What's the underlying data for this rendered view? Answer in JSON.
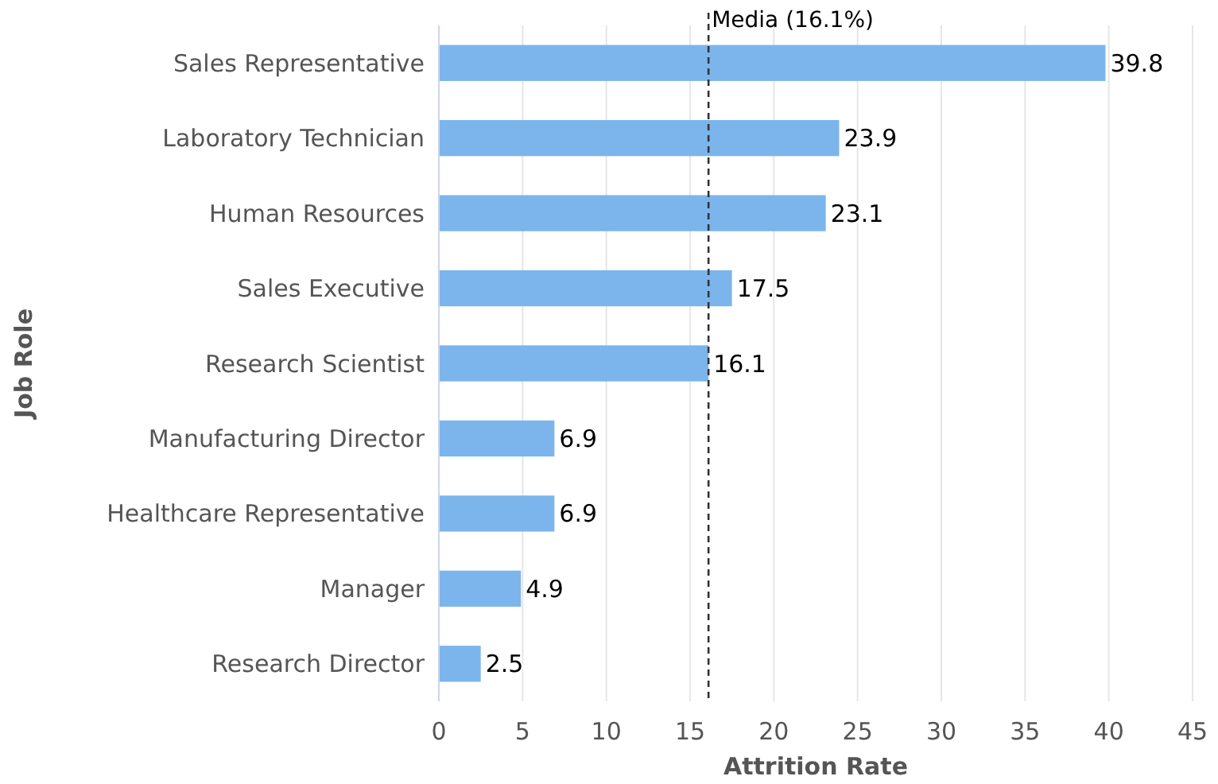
{
  "chart_data": {
    "type": "bar",
    "orientation": "horizontal",
    "xlabel": "Attrition Rate",
    "ylabel": "Job Role",
    "categories": [
      "Sales Representative",
      "Laboratory Technician",
      "Human Resources",
      "Sales Executive",
      "Research Scientist",
      "Manufacturing Director",
      "Healthcare Representative",
      "Manager",
      "Research Director"
    ],
    "values": [
      39.8,
      23.9,
      23.1,
      17.5,
      16.1,
      6.9,
      6.9,
      4.9,
      2.5
    ],
    "color": "#7cb5ec",
    "xlim": [
      0,
      45
    ],
    "xticks": [
      0,
      5,
      10,
      15,
      20,
      25,
      30,
      35,
      40,
      45
    ],
    "grid": "x",
    "data_labels": true,
    "ref_lines": [
      {
        "axis": "x",
        "value": 16.1,
        "label": "Media (16.1%)",
        "line_style": "dashed",
        "color": "#333333"
      }
    ]
  }
}
